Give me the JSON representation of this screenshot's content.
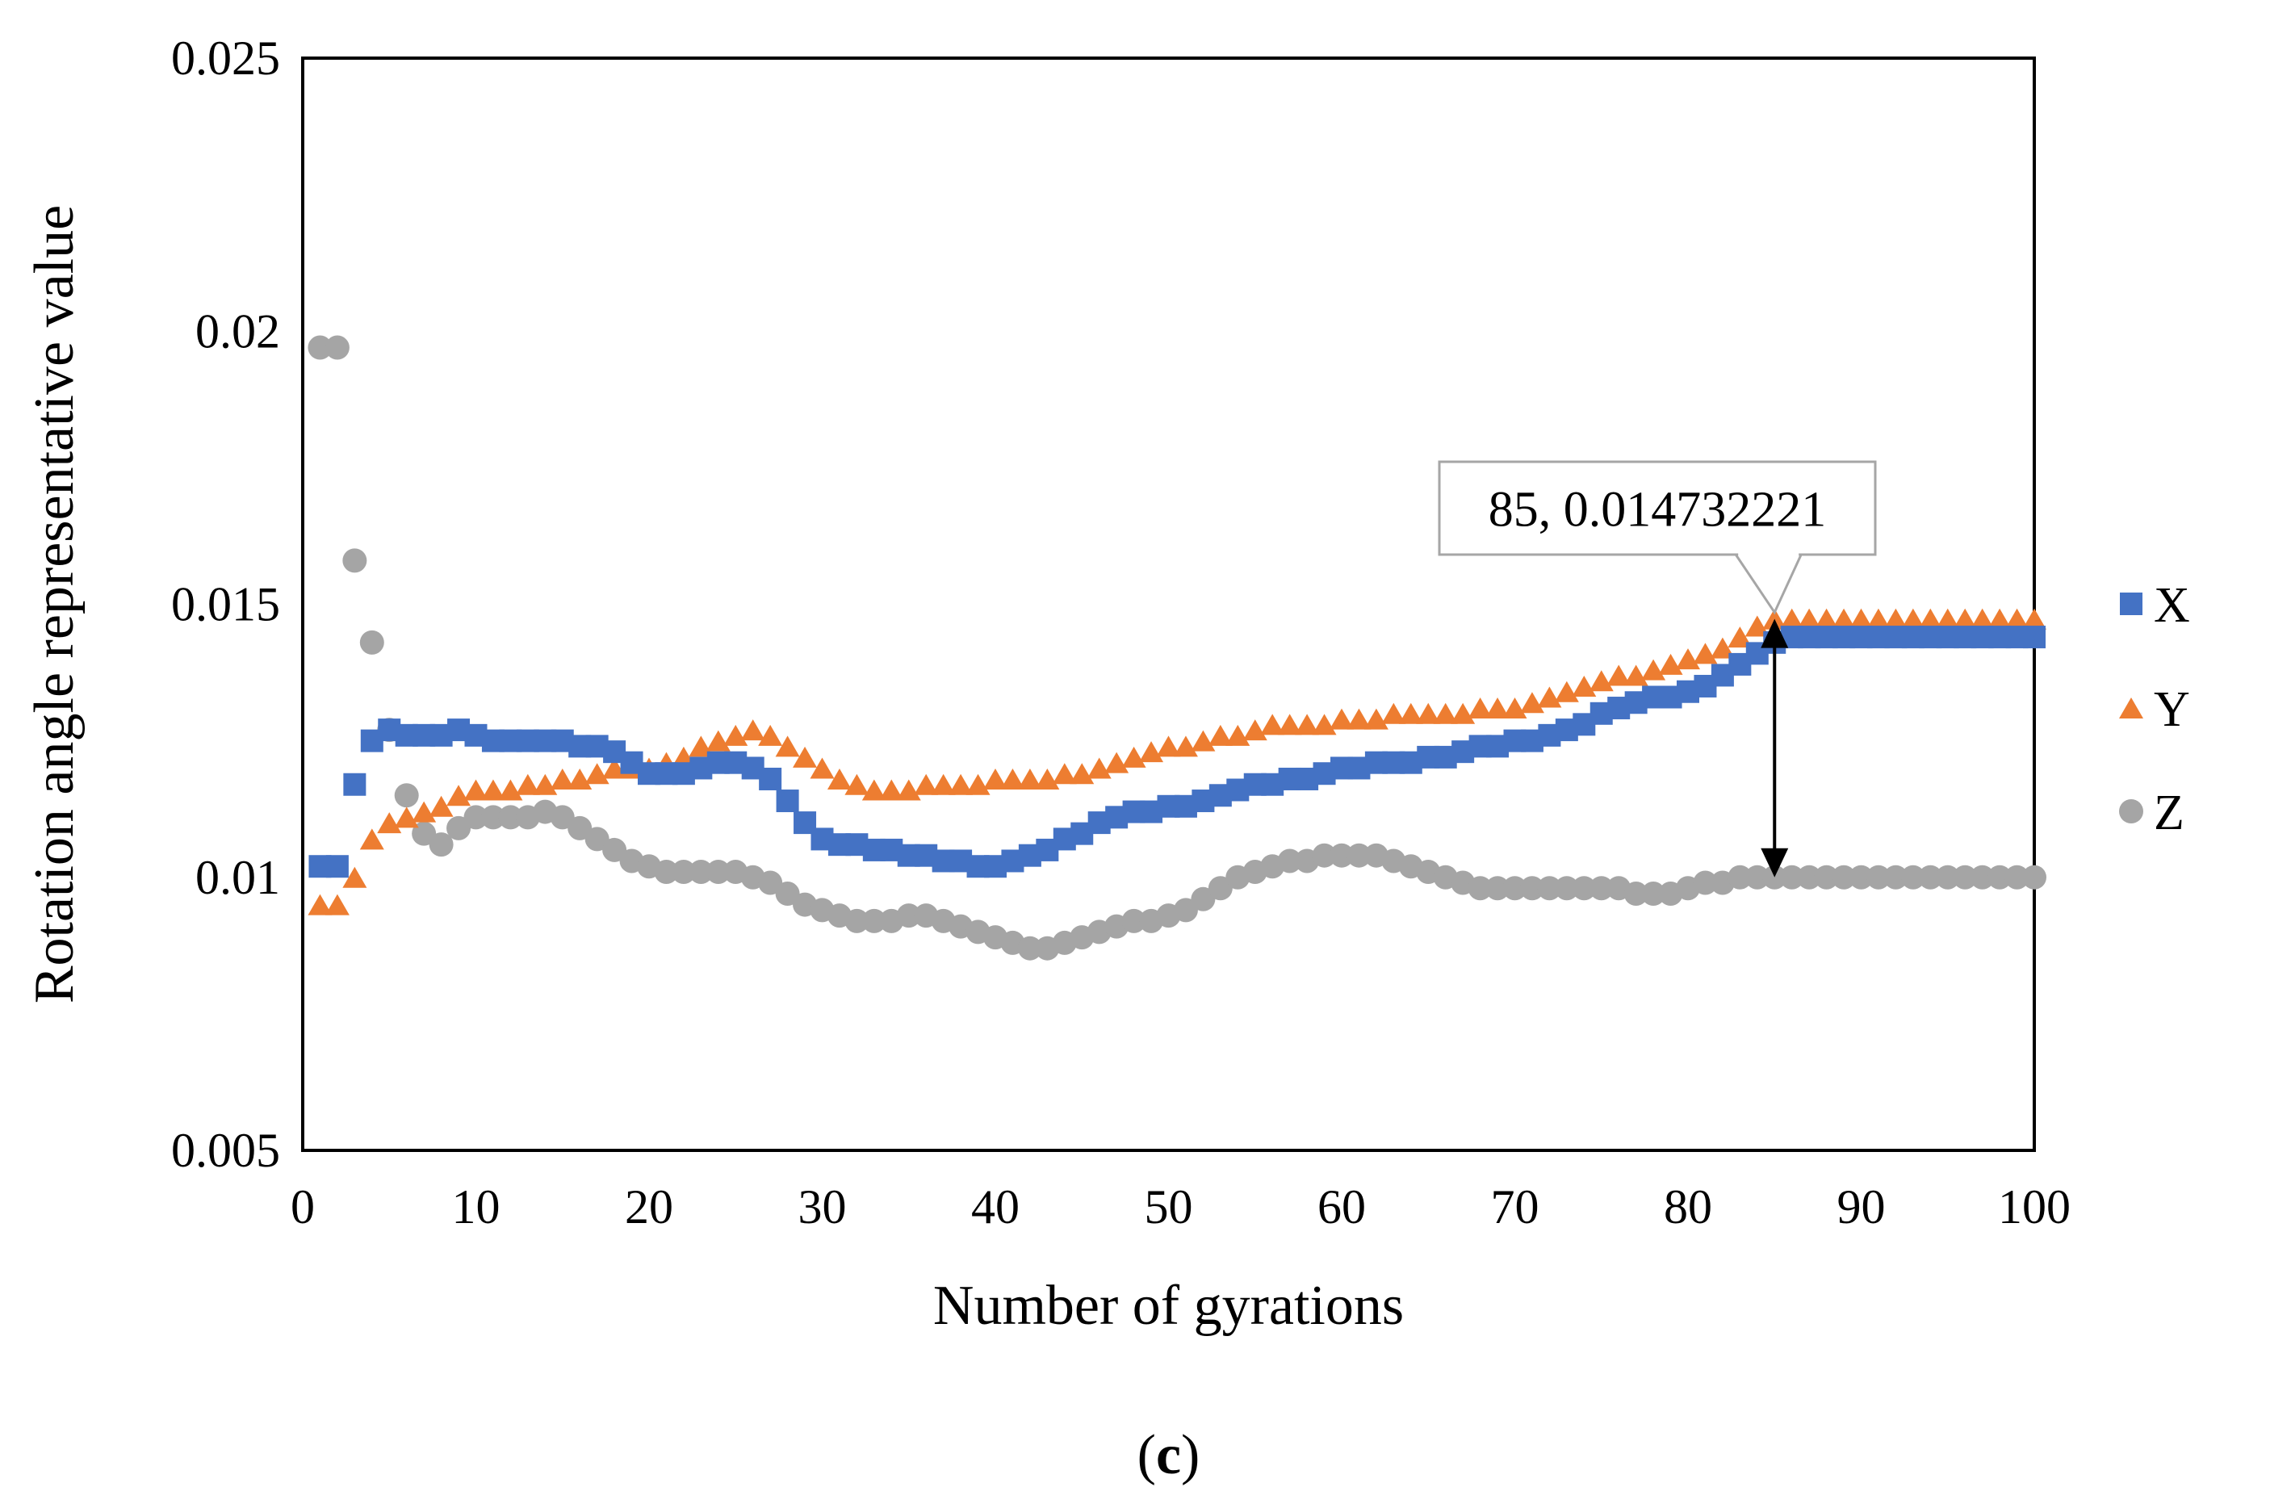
{
  "chart_data": {
    "type": "scatter",
    "title": "",
    "panel_label_prefix": "(",
    "panel_label_letter": "c",
    "panel_label_suffix": ")",
    "xlabel": "Number of gyrations",
    "ylabel": "Rotation angle representative value",
    "xlim": [
      0,
      100
    ],
    "ylim": [
      0.005,
      0.025
    ],
    "xticks": [
      0,
      10,
      20,
      30,
      40,
      50,
      60,
      70,
      80,
      90,
      100
    ],
    "xtick_labels": [
      "0",
      "10",
      "20",
      "30",
      "40",
      "50",
      "60",
      "70",
      "80",
      "90",
      "100"
    ],
    "yticks": [
      0.005,
      0.01,
      0.015,
      0.02,
      0.025
    ],
    "ytick_labels": [
      "0.005",
      "0.01",
      "0.015",
      "0.02",
      "0.025"
    ],
    "grid": false,
    "legend_position": "right",
    "x": [
      1,
      2,
      3,
      4,
      5,
      6,
      7,
      8,
      9,
      10,
      11,
      12,
      13,
      14,
      15,
      16,
      17,
      18,
      19,
      20,
      21,
      22,
      23,
      24,
      25,
      26,
      27,
      28,
      29,
      30,
      31,
      32,
      33,
      34,
      35,
      36,
      37,
      38,
      39,
      40,
      41,
      42,
      43,
      44,
      45,
      46,
      47,
      48,
      49,
      50,
      51,
      52,
      53,
      54,
      55,
      56,
      57,
      58,
      59,
      60,
      61,
      62,
      63,
      64,
      65,
      66,
      67,
      68,
      69,
      70,
      71,
      72,
      73,
      74,
      75,
      76,
      77,
      78,
      79,
      80,
      81,
      82,
      83,
      84,
      85,
      86,
      87,
      88,
      89,
      90,
      91,
      92,
      93,
      94,
      95,
      96,
      97,
      98,
      99,
      100
    ],
    "series": [
      {
        "name": "X",
        "marker": "square",
        "color": "#4472C4",
        "values": [
          0.0102,
          0.0102,
          0.0117,
          0.0125,
          0.0127,
          0.0126,
          0.0126,
          0.0126,
          0.0127,
          0.0126,
          0.0125,
          0.0125,
          0.0125,
          0.0125,
          0.0125,
          0.0124,
          0.0124,
          0.0123,
          0.0121,
          0.0119,
          0.0119,
          0.0119,
          0.012,
          0.0121,
          0.0121,
          0.012,
          0.0118,
          0.0114,
          0.011,
          0.0107,
          0.0106,
          0.0106,
          0.0105,
          0.0105,
          0.0104,
          0.0104,
          0.0103,
          0.0103,
          0.0102,
          0.0102,
          0.0103,
          0.0104,
          0.0105,
          0.0107,
          0.0108,
          0.011,
          0.0111,
          0.0112,
          0.0112,
          0.0113,
          0.0113,
          0.0114,
          0.0115,
          0.0116,
          0.0117,
          0.0117,
          0.0118,
          0.0118,
          0.0119,
          0.012,
          0.012,
          0.0121,
          0.0121,
          0.0121,
          0.0122,
          0.0122,
          0.0123,
          0.0124,
          0.0124,
          0.0125,
          0.0125,
          0.0126,
          0.0127,
          0.0128,
          0.013,
          0.0131,
          0.0132,
          0.0133,
          0.0133,
          0.0134,
          0.0135,
          0.0137,
          0.0139,
          0.0141,
          0.0143,
          0.0144,
          0.0144,
          0.0144,
          0.0144,
          0.0144,
          0.0144,
          0.0144,
          0.0144,
          0.0144,
          0.0144,
          0.0144,
          0.0144,
          0.0144,
          0.0144,
          0.0144
        ]
      },
      {
        "name": "Y",
        "marker": "triangle",
        "color": "#ED7D31",
        "values": [
          0.0095,
          0.0095,
          0.01,
          0.0107,
          0.011,
          0.0111,
          0.0112,
          0.0113,
          0.0115,
          0.0116,
          0.0116,
          0.0116,
          0.0117,
          0.0117,
          0.0118,
          0.0118,
          0.0119,
          0.012,
          0.012,
          0.012,
          0.0121,
          0.0122,
          0.0124,
          0.0125,
          0.0126,
          0.0127,
          0.0126,
          0.0124,
          0.0122,
          0.012,
          0.0118,
          0.0117,
          0.0116,
          0.0116,
          0.0116,
          0.0117,
          0.0117,
          0.0117,
          0.0117,
          0.0118,
          0.0118,
          0.0118,
          0.0118,
          0.0119,
          0.0119,
          0.012,
          0.0121,
          0.0122,
          0.0123,
          0.0124,
          0.0124,
          0.0125,
          0.0126,
          0.0126,
          0.0127,
          0.0128,
          0.0128,
          0.0128,
          0.0128,
          0.0129,
          0.0129,
          0.0129,
          0.013,
          0.013,
          0.013,
          0.013,
          0.013,
          0.0131,
          0.0131,
          0.0131,
          0.0132,
          0.0133,
          0.0134,
          0.0135,
          0.0136,
          0.0137,
          0.0137,
          0.0138,
          0.0139,
          0.014,
          0.0141,
          0.0142,
          0.0144,
          0.0146,
          0.01473,
          0.01473,
          0.01473,
          0.01473,
          0.01473,
          0.01473,
          0.01473,
          0.01473,
          0.01473,
          0.01473,
          0.01473,
          0.01473,
          0.01473,
          0.01473,
          0.01473,
          0.01473
        ]
      },
      {
        "name": "Z",
        "marker": "circle",
        "color": "#A5A5A5",
        "values": [
          0.0197,
          0.0197,
          0.0158,
          0.0143,
          0.0127,
          0.0115,
          0.0108,
          0.0106,
          0.0109,
          0.0111,
          0.0111,
          0.0111,
          0.0111,
          0.0112,
          0.0111,
          0.0109,
          0.0107,
          0.0105,
          0.0103,
          0.0102,
          0.0101,
          0.0101,
          0.0101,
          0.0101,
          0.0101,
          0.01,
          0.0099,
          0.0097,
          0.0095,
          0.0094,
          0.0093,
          0.0092,
          0.0092,
          0.0092,
          0.0093,
          0.0093,
          0.0092,
          0.0091,
          0.009,
          0.0089,
          0.0088,
          0.0087,
          0.0087,
          0.0088,
          0.0089,
          0.009,
          0.0091,
          0.0092,
          0.0092,
          0.0093,
          0.0094,
          0.0096,
          0.0098,
          0.01,
          0.0101,
          0.0102,
          0.0103,
          0.0103,
          0.0104,
          0.0104,
          0.0104,
          0.0104,
          0.0103,
          0.0102,
          0.0101,
          0.01,
          0.0099,
          0.0098,
          0.0098,
          0.0098,
          0.0098,
          0.0098,
          0.0098,
          0.0098,
          0.0098,
          0.0098,
          0.0097,
          0.0097,
          0.0097,
          0.0098,
          0.0099,
          0.0099,
          0.01,
          0.01,
          0.01,
          0.01,
          0.01,
          0.01,
          0.01,
          0.01,
          0.01,
          0.01,
          0.01,
          0.01,
          0.01,
          0.01,
          0.01,
          0.01,
          0.01,
          0.01
        ]
      }
    ],
    "annotation": {
      "text": "85, 0.014732221",
      "x": 85,
      "y": 0.014732221,
      "arrow_from": 0.014732221,
      "arrow_to": 0.01
    }
  }
}
